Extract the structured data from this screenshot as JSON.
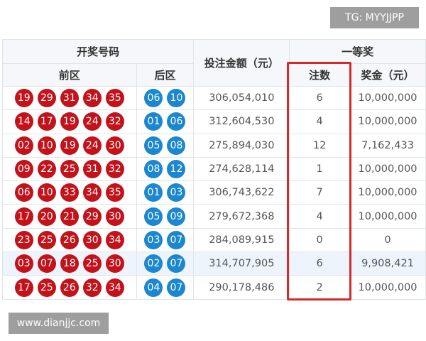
{
  "watermarks": {
    "top": "TG: MYYJJPP",
    "bottom": "www.dianjjc.com"
  },
  "header": {
    "draw_numbers": "开奖号码",
    "front": "前区",
    "back": "后区",
    "sales": "投注金额（元）",
    "first_prize": "一等奖",
    "count": "注数",
    "prize": "奖金（元）"
  },
  "colors": {
    "front_ball": "#c3121a",
    "back_ball": "#1a87d0",
    "highlight_box": "#d32a2a"
  },
  "rows": [
    {
      "front": [
        "19",
        "29",
        "31",
        "34",
        "35"
      ],
      "back": [
        "06",
        "10"
      ],
      "sales": "306,054,010",
      "count": "6",
      "prize": "10,000,000"
    },
    {
      "front": [
        "14",
        "17",
        "19",
        "24",
        "32"
      ],
      "back": [
        "01",
        "06"
      ],
      "sales": "312,604,530",
      "count": "4",
      "prize": "10,000,000"
    },
    {
      "front": [
        "02",
        "10",
        "19",
        "24",
        "30"
      ],
      "back": [
        "05",
        "08"
      ],
      "sales": "275,894,030",
      "count": "12",
      "prize": "7,162,433"
    },
    {
      "front": [
        "09",
        "22",
        "25",
        "31",
        "32"
      ],
      "back": [
        "08",
        "12"
      ],
      "sales": "274,628,114",
      "count": "1",
      "prize": "10,000,000"
    },
    {
      "front": [
        "06",
        "10",
        "33",
        "34",
        "35"
      ],
      "back": [
        "01",
        "03"
      ],
      "sales": "306,743,622",
      "count": "7",
      "prize": "10,000,000"
    },
    {
      "front": [
        "17",
        "20",
        "21",
        "29",
        "30"
      ],
      "back": [
        "05",
        "09"
      ],
      "sales": "279,672,368",
      "count": "4",
      "prize": "10,000,000"
    },
    {
      "front": [
        "23",
        "25",
        "26",
        "30",
        "34"
      ],
      "back": [
        "03",
        "07"
      ],
      "sales": "284,089,915",
      "count": "0",
      "prize": "0"
    },
    {
      "front": [
        "03",
        "07",
        "18",
        "25",
        "30"
      ],
      "back": [
        "02",
        "07"
      ],
      "sales": "314,707,905",
      "count": "6",
      "prize": "9,908,421",
      "highlighted": true
    },
    {
      "front": [
        "17",
        "25",
        "26",
        "32",
        "34"
      ],
      "back": [
        "04",
        "07"
      ],
      "sales": "290,178,486",
      "count": "2",
      "prize": "10,000,000"
    }
  ]
}
